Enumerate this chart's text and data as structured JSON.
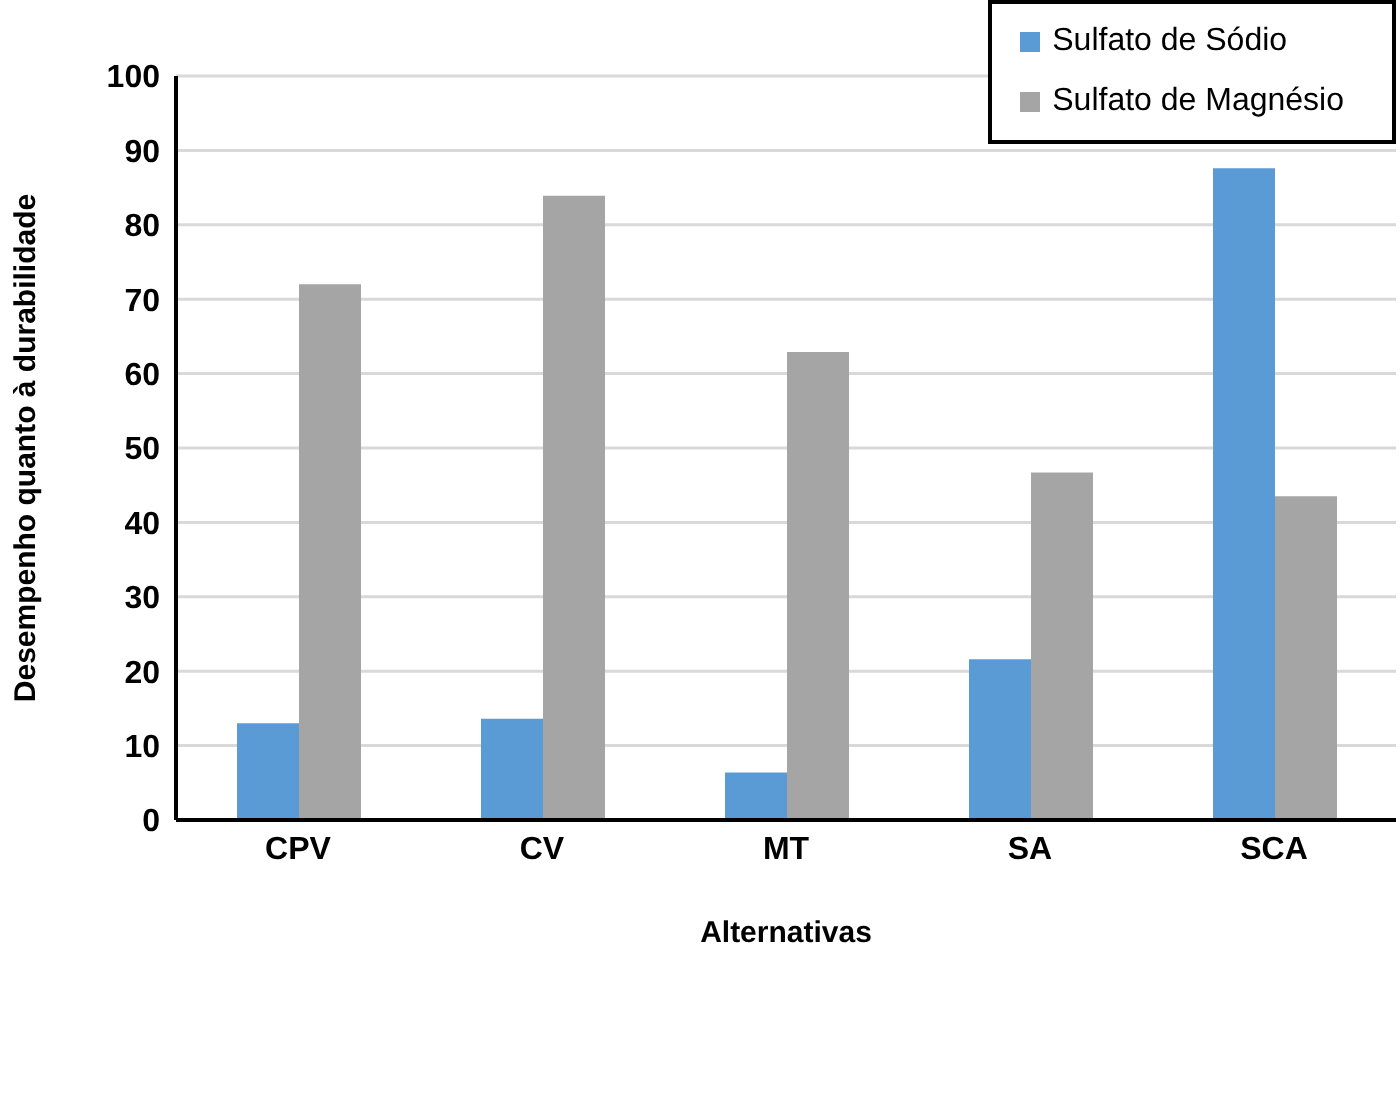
{
  "chart_data": {
    "type": "bar",
    "xlabel": "Alternativas",
    "ylabel": "Desempenho quanto à durabilidade",
    "categories": [
      "CPV",
      "CV",
      "MT",
      "SA",
      "SCA"
    ],
    "series": [
      {
        "name": "Sulfato de Sódio",
        "color": "#5b9bd5",
        "values": [
          13.0,
          13.6,
          6.4,
          21.6,
          87.6
        ]
      },
      {
        "name": "Sulfato de Magnésio",
        "color": "#a5a5a5",
        "values": [
          72.0,
          83.9,
          62.9,
          46.7,
          43.5
        ]
      }
    ],
    "ylim": [
      0,
      100
    ],
    "yticks": [
      0,
      10,
      20,
      30,
      40,
      50,
      60,
      70,
      80,
      90,
      100
    ],
    "grid": "y",
    "legend": "top right"
  }
}
